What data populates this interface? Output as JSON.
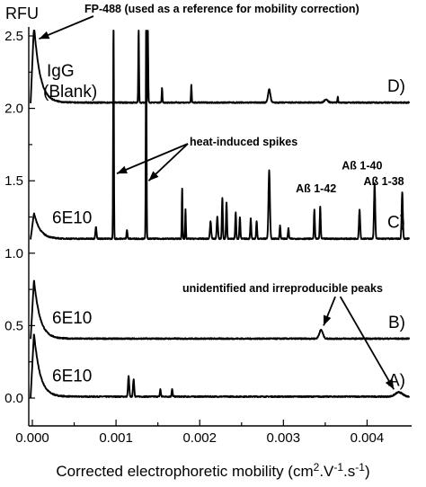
{
  "chart_data": {
    "type": "line",
    "y_unit_label": "RFU",
    "xlabel": "Corrected electrophoretic mobility (cm²·V⁻¹·s⁻¹)",
    "xlabel_parts": {
      "prefix": "Corrected electrophoretic mobility (cm",
      "sup1": "2",
      "mid1": ".V",
      "sup2": "-1",
      "mid2": ".s",
      "sup3": "-1",
      "suffix": ")"
    },
    "xlim": [
      -0.0001,
      0.00455
    ],
    "ylim": [
      -0.1,
      2.58
    ],
    "x_ticks": [
      {
        "value": 0.0,
        "label": "0.000"
      },
      {
        "value": 0.001,
        "label": "0.001"
      },
      {
        "value": 0.002,
        "label": "0.002"
      },
      {
        "value": 0.003,
        "label": "0.003"
      },
      {
        "value": 0.004,
        "label": "0.004"
      }
    ],
    "y_ticks": [
      {
        "value": 0.0,
        "label": "0.0"
      },
      {
        "value": 0.5,
        "label": "0.5"
      },
      {
        "value": 1.0,
        "label": "1.0"
      },
      {
        "value": 1.5,
        "label": "1.5"
      },
      {
        "value": 2.0,
        "label": "2.0"
      },
      {
        "value": 2.5,
        "label": "2.5"
      }
    ],
    "series": [
      {
        "tag": "A)",
        "sample": "6E10",
        "baseline": 0.01,
        "start_level": 0.45,
        "peaks": [
          {
            "x": 0.00115,
            "h": 0.14,
            "w": 1e-05
          },
          {
            "x": 0.00121,
            "h": 0.12,
            "w": 1e-05
          },
          {
            "x": 0.00153,
            "h": 0.05,
            "w": 8e-06
          },
          {
            "x": 0.00167,
            "h": 0.05,
            "w": 8e-06
          },
          {
            "x": 0.00438,
            "h": 0.03,
            "w": 6e-05
          }
        ]
      },
      {
        "tag": "B)",
        "sample": "6E10",
        "baseline": 0.41,
        "start_level": 0.82,
        "peaks": [
          {
            "x": 0.00345,
            "h": 0.06,
            "w": 3e-05
          }
        ]
      },
      {
        "tag": "C)",
        "sample": "6E10",
        "baseline": 1.1,
        "start_level": 1.28,
        "peaks": [
          {
            "x": 0.00076,
            "h": 0.08,
            "w": 1e-05
          },
          {
            "x": 0.00097,
            "h": 1.5,
            "w": 6e-06
          },
          {
            "x": 0.00113,
            "h": 0.06,
            "w": 8e-06
          },
          {
            "x": 0.00136,
            "h": 1.5,
            "w": 6e-06
          },
          {
            "x": 0.00179,
            "h": 0.35,
            "w": 6e-06
          },
          {
            "x": 0.00183,
            "h": 0.2,
            "w": 6e-06
          },
          {
            "x": 0.00213,
            "h": 0.12,
            "w": 1e-05
          },
          {
            "x": 0.00221,
            "h": 0.15,
            "w": 1e-05
          },
          {
            "x": 0.00227,
            "h": 0.28,
            "w": 8e-06
          },
          {
            "x": 0.00232,
            "h": 0.25,
            "w": 8e-06
          },
          {
            "x": 0.00243,
            "h": 0.18,
            "w": 8e-06
          },
          {
            "x": 0.00248,
            "h": 0.15,
            "w": 8e-06
          },
          {
            "x": 0.00261,
            "h": 0.14,
            "w": 8e-06
          },
          {
            "x": 0.00268,
            "h": 0.12,
            "w": 8e-06
          },
          {
            "x": 0.00283,
            "h": 0.47,
            "w": 1.2e-05
          },
          {
            "x": 0.00296,
            "h": 0.09,
            "w": 8e-06
          },
          {
            "x": 0.00306,
            "h": 0.07,
            "w": 8e-06
          },
          {
            "x": 0.00337,
            "h": 0.2,
            "w": 8e-06
          },
          {
            "x": 0.00344,
            "h": 0.22,
            "w": 8e-06
          },
          {
            "x": 0.00391,
            "h": 0.2,
            "w": 1e-05
          },
          {
            "x": 0.00409,
            "h": 0.38,
            "w": 1e-05
          },
          {
            "x": 0.00442,
            "h": 0.32,
            "w": 1e-05
          }
        ]
      },
      {
        "tag": "D)",
        "sample": "IgG",
        "sample_line2": "(Blank)",
        "baseline": 2.04,
        "start_level": 2.58,
        "peaks": [
          {
            "x": 0.00127,
            "h": 0.5,
            "w": 6e-06
          },
          {
            "x": 0.00138,
            "h": 0.5,
            "w": 6e-06
          },
          {
            "x": 0.00155,
            "h": 0.1,
            "w": 6e-06
          },
          {
            "x": 0.0019,
            "h": 0.12,
            "w": 6e-06
          },
          {
            "x": 0.00283,
            "h": 0.09,
            "w": 2e-05
          },
          {
            "x": 0.00351,
            "h": 0.02,
            "w": 3e-05
          },
          {
            "x": 0.00365,
            "h": 0.04,
            "w": 6e-06
          }
        ]
      }
    ],
    "peak_labels": [
      {
        "text": "Aß 1-42",
        "x": 0.00339,
        "y": 1.42
      },
      {
        "text": "Aß 1-40",
        "x": 0.00394,
        "y": 1.58
      },
      {
        "text": "Aß 1-38",
        "x": 0.0042,
        "y": 1.47
      }
    ],
    "annotations": [
      {
        "id": "fp488",
        "text": "FP-488 (used as a reference for mobility correction)",
        "x": 0.0001,
        "y": 2.72,
        "arrows": [
          {
            "from": [
              0.00105,
              2.72
            ],
            "to": [
              8e-05,
              2.48
            ]
          }
        ]
      },
      {
        "id": "heat",
        "text": "heat-induced spikes",
        "x": 0.00196,
        "y": 1.72,
        "arrows": [
          {
            "from": [
              0.00196,
              1.72
            ],
            "to": [
              0.00101,
              1.55
            ]
          },
          {
            "from": [
              0.00196,
              1.72
            ],
            "to": [
              0.00139,
              1.5
            ]
          }
        ]
      },
      {
        "id": "unident",
        "text": "unidentified and irreproducible peaks",
        "x": 0.0021,
        "y": 0.75,
        "arrows": [
          {
            "from": [
              0.00362,
              0.7
            ],
            "to": [
              0.00348,
              0.5
            ]
          },
          {
            "from": [
              0.00368,
              0.7
            ],
            "to": [
              0.00432,
              0.06
            ]
          }
        ]
      }
    ]
  }
}
